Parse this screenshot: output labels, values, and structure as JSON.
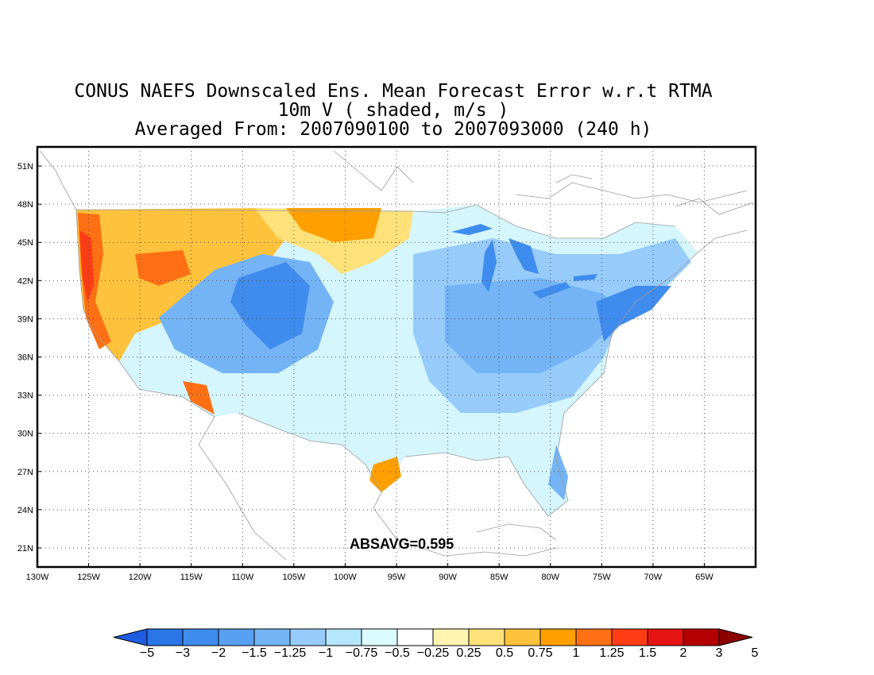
{
  "title": {
    "line1": "CONUS NAEFS Downscaled Ens. Mean Forecast Error w.r.t RTMA",
    "line2": "10m V ( shaded, m/s )",
    "line3": "Averaged From: 2007090100 to 2007093000 (240 h)"
  },
  "annotation": "ABSAVG=0.595",
  "map": {
    "lon_range": [
      -130,
      -60
    ],
    "lat_range": [
      19.5,
      52.5
    ],
    "lon_ticks": [
      "130W",
      "125W",
      "120W",
      "115W",
      "110W",
      "105W",
      "100W",
      "95W",
      "90W",
      "85W",
      "80W",
      "75W",
      "70W",
      "65W"
    ],
    "lat_ticks": [
      "51N",
      "48N",
      "45N",
      "42N",
      "39N",
      "36N",
      "33N",
      "30N",
      "27N",
      "24N",
      "21N"
    ],
    "grid": "dotted"
  },
  "colorbar": {
    "labels": [
      "−5",
      "−3",
      "−2",
      "−1.5",
      "−1.25",
      "−1",
      "−0.75",
      "−0.5",
      "−0.25",
      "0.25",
      "0.5",
      "0.75",
      "1",
      "1.25",
      "1.5",
      "2",
      "3",
      "5"
    ],
    "colors": [
      "#1e5ce0",
      "#2a75e8",
      "#3f8cee",
      "#58a0f2",
      "#74b4f6",
      "#96cbfa",
      "#b4e6fc",
      "#dcfbff",
      "#ffffff",
      "#fff5b0",
      "#ffe17a",
      "#ffc23c",
      "#ffa000",
      "#ff7014",
      "#ff3c14",
      "#e61414",
      "#b40000",
      "#8c0000"
    ]
  }
}
